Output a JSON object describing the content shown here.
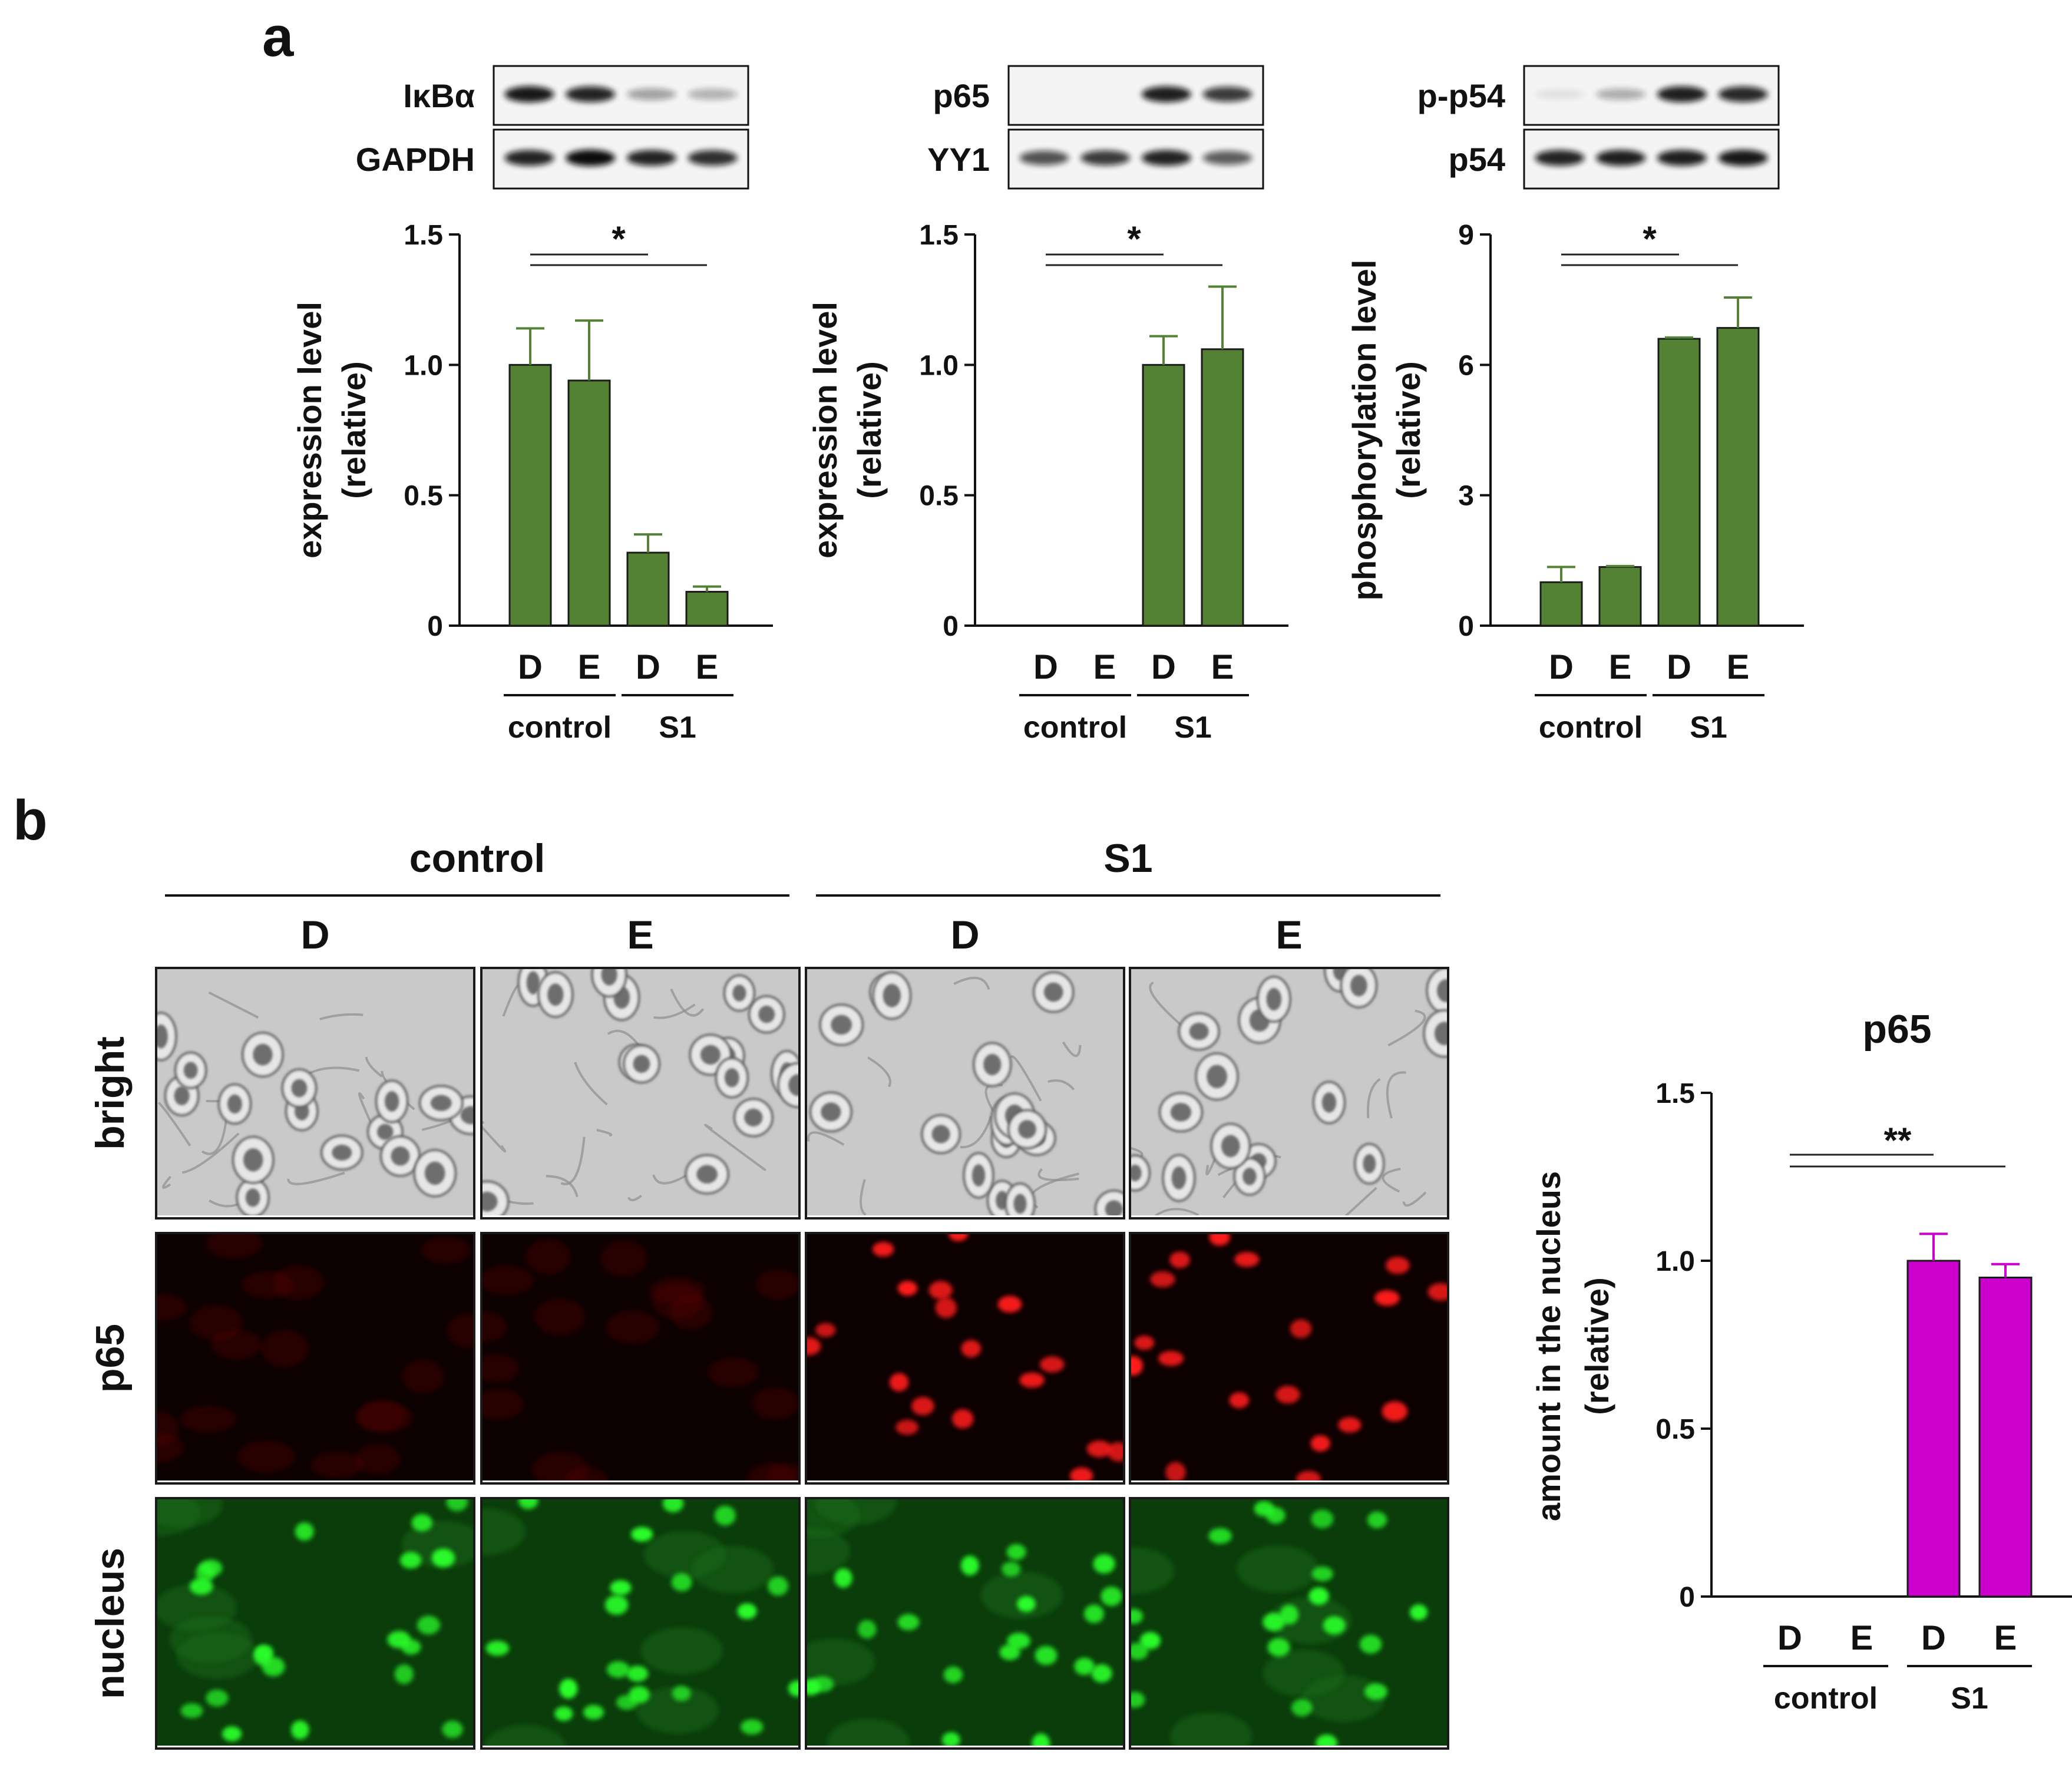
{
  "panel_a": {
    "label": "a",
    "blots": [
      {
        "top_label": "IκBα",
        "top_intensity": [
          0.95,
          0.9,
          0.35,
          0.28
        ],
        "bottom_label": "GAPDH",
        "bottom_intensity": [
          0.9,
          1.0,
          0.9,
          0.85
        ]
      },
      {
        "top_label": "p65",
        "top_intensity": [
          0.0,
          0.0,
          0.92,
          0.8
        ],
        "bottom_label": "YY1",
        "bottom_intensity": [
          0.7,
          0.8,
          0.9,
          0.65
        ]
      },
      {
        "top_label": "p-p54",
        "top_intensity": [
          0.08,
          0.3,
          0.92,
          0.88
        ],
        "bottom_label": "p54",
        "bottom_intensity": [
          0.9,
          0.92,
          0.92,
          0.95
        ]
      }
    ]
  },
  "panel_b": {
    "label": "b",
    "group_headers": [
      "control",
      "S1"
    ],
    "column_headers": [
      "D",
      "E",
      "D",
      "E"
    ],
    "row_labels": [
      "bright",
      "p65",
      "nucleus"
    ],
    "p65_intensity": [
      0.05,
      0.06,
      1.0,
      1.0
    ]
  },
  "chart_data": [
    {
      "type": "bar",
      "categories": [
        "D",
        "E",
        "D",
        "E"
      ],
      "groups": [
        {
          "label": "control",
          "categories": [
            0,
            1
          ]
        },
        {
          "label": "S1",
          "categories": [
            2,
            3
          ]
        }
      ],
      "values": [
        1.0,
        0.94,
        0.28,
        0.13
      ],
      "errors": [
        0.14,
        0.23,
        0.07,
        0.02
      ],
      "ylim": [
        0,
        1.5
      ],
      "yticks": [
        0,
        0.5,
        1.0,
        1.5
      ],
      "ytick_labels": [
        "0",
        "0.5",
        "1.0",
        "1.5"
      ],
      "ylabel": [
        "expression level",
        "(relative)"
      ],
      "title": "",
      "bar_color": "#548235",
      "significance": {
        "label": "*",
        "lines": [
          [
            0,
            2
          ],
          [
            0,
            3
          ]
        ]
      }
    },
    {
      "type": "bar",
      "categories": [
        "D",
        "E",
        "D",
        "E"
      ],
      "groups": [
        {
          "label": "control",
          "categories": [
            0,
            1
          ]
        },
        {
          "label": "S1",
          "categories": [
            2,
            3
          ]
        }
      ],
      "values": [
        0,
        0,
        1.0,
        1.06
      ],
      "errors": [
        0,
        0,
        0.11,
        0.24
      ],
      "ylim": [
        0,
        1.5
      ],
      "yticks": [
        0,
        0.5,
        1.0,
        1.5
      ],
      "ytick_labels": [
        "0",
        "0.5",
        "1.0",
        "1.5"
      ],
      "ylabel": [
        "expression level",
        "(relative)"
      ],
      "title": "",
      "bar_color": "#548235",
      "significance": {
        "label": "*",
        "lines": [
          [
            0,
            2
          ],
          [
            0,
            3
          ]
        ]
      }
    },
    {
      "type": "bar",
      "categories": [
        "D",
        "E",
        "D",
        "E"
      ],
      "groups": [
        {
          "label": "control",
          "categories": [
            0,
            1
          ]
        },
        {
          "label": "S1",
          "categories": [
            2,
            3
          ]
        }
      ],
      "values": [
        1.0,
        1.35,
        6.6,
        6.85
      ],
      "errors": [
        0.35,
        0.02,
        0.03,
        0.7
      ],
      "ylim": [
        0,
        9
      ],
      "yticks": [
        0,
        3,
        6,
        9
      ],
      "ytick_labels": [
        "0",
        "3",
        "6",
        "9"
      ],
      "ylabel": [
        "phosphorylation level",
        "(relative)"
      ],
      "title": "",
      "bar_color": "#548235",
      "significance": {
        "label": "*",
        "lines": [
          [
            0,
            2
          ],
          [
            0,
            3
          ]
        ]
      }
    },
    {
      "type": "bar",
      "categories": [
        "D",
        "E",
        "D",
        "E"
      ],
      "groups": [
        {
          "label": "control",
          "categories": [
            0,
            1
          ]
        },
        {
          "label": "S1",
          "categories": [
            2,
            3
          ]
        }
      ],
      "values": [
        0,
        0,
        1.0,
        0.95
      ],
      "errors": [
        0,
        0,
        0.08,
        0.04
      ],
      "ylim": [
        0,
        1.5
      ],
      "yticks": [
        0,
        0.5,
        1.0,
        1.5
      ],
      "ytick_labels": [
        "0",
        "0.5",
        "1.0",
        "1.5"
      ],
      "ylabel": [
        "amount in the nucleus",
        "(relative)"
      ],
      "title": "p65",
      "bar_color": "#CC00CC",
      "significance": {
        "label": "**",
        "lines": [
          [
            0,
            2
          ],
          [
            0,
            3
          ]
        ]
      }
    }
  ]
}
